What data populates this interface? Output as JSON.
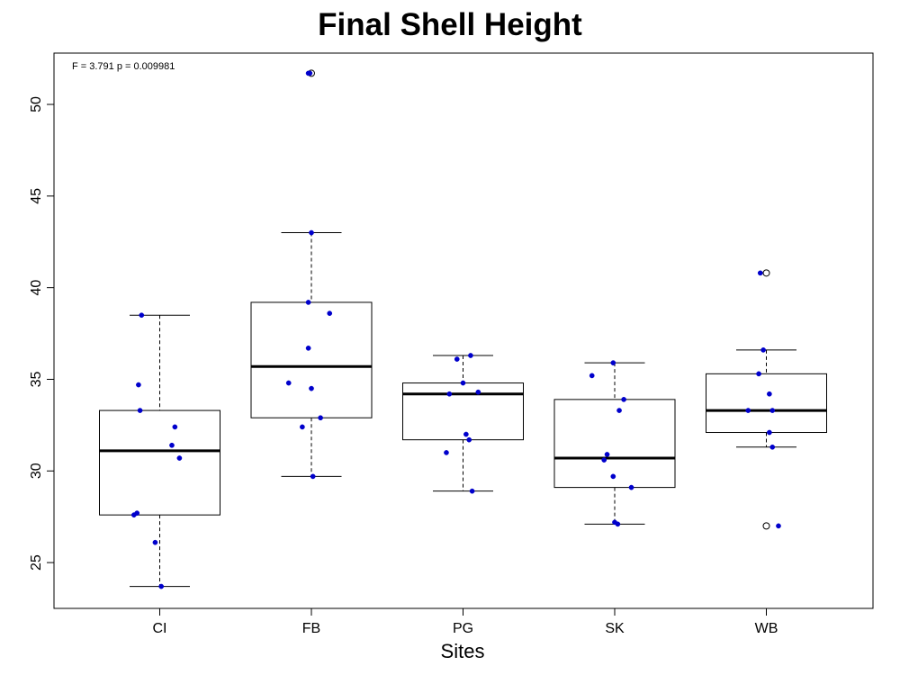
{
  "chart_data": {
    "type": "boxplot",
    "title": "Final Shell Height",
    "xlabel": "Sites",
    "ylabel": "",
    "annotation": "F = 3.791  p = 0.009981",
    "ylim": [
      22.5,
      52.8
    ],
    "yticks": [
      25,
      30,
      35,
      40,
      45,
      50
    ],
    "categories": [
      "CI",
      "FB",
      "PG",
      "SK",
      "WB"
    ],
    "boxes": [
      {
        "category": "CI",
        "whisker_low": 23.7,
        "q1": 27.6,
        "median": 31.1,
        "q3": 33.3,
        "whisker_high": 38.5,
        "outliers": []
      },
      {
        "category": "FB",
        "whisker_low": 29.7,
        "q1": 32.9,
        "median": 35.7,
        "q3": 39.2,
        "whisker_high": 43.0,
        "outliers": [
          51.7
        ]
      },
      {
        "category": "PG",
        "whisker_low": 28.9,
        "q1": 31.7,
        "median": 34.2,
        "q3": 34.8,
        "whisker_high": 36.3,
        "outliers": []
      },
      {
        "category": "SK",
        "whisker_low": 27.1,
        "q1": 29.1,
        "median": 30.7,
        "q3": 33.9,
        "whisker_high": 35.9,
        "outliers": []
      },
      {
        "category": "WB",
        "whisker_low": 31.3,
        "q1": 32.1,
        "median": 33.3,
        "q3": 35.3,
        "whisker_high": 36.6,
        "outliers": [
          40.8,
          27.0
        ]
      }
    ],
    "points": [
      {
        "category": "CI",
        "values": [
          38.5,
          34.7,
          33.3,
          32.4,
          31.4,
          30.7,
          27.7,
          27.6,
          26.1,
          23.7
        ],
        "jitter": [
          -0.12,
          -0.14,
          -0.13,
          0.1,
          0.08,
          0.13,
          -0.15,
          -0.17,
          -0.03,
          0.01
        ]
      },
      {
        "category": "FB",
        "values": [
          51.7,
          51.7,
          43.0,
          39.2,
          38.6,
          36.7,
          34.8,
          34.5,
          32.9,
          32.4,
          29.7
        ],
        "jitter": [
          -0.02,
          -0.01,
          0.0,
          -0.02,
          0.12,
          -0.02,
          -0.15,
          0.0,
          0.06,
          -0.06,
          0.01
        ]
      },
      {
        "category": "PG",
        "values": [
          36.3,
          36.1,
          34.8,
          34.3,
          34.2,
          32.0,
          31.7,
          31.0,
          28.9
        ],
        "jitter": [
          0.05,
          -0.04,
          0.0,
          0.1,
          -0.09,
          0.02,
          0.04,
          -0.11,
          0.06
        ]
      },
      {
        "category": "SK",
        "values": [
          35.9,
          35.2,
          33.9,
          33.3,
          30.9,
          30.6,
          29.7,
          29.1,
          27.2,
          27.1
        ],
        "jitter": [
          -0.01,
          -0.15,
          0.06,
          0.03,
          -0.05,
          -0.07,
          -0.01,
          0.11,
          0.0,
          0.02
        ]
      },
      {
        "category": "WB",
        "values": [
          40.8,
          36.6,
          35.3,
          34.2,
          33.3,
          33.3,
          32.1,
          31.3,
          27.0
        ],
        "jitter": [
          -0.04,
          -0.02,
          -0.05,
          0.02,
          -0.12,
          0.04,
          0.02,
          0.04,
          0.08
        ]
      }
    ],
    "colors": {
      "points": "#0000cc",
      "box": "#000000",
      "background": "#ffffff"
    },
    "grid": false
  }
}
